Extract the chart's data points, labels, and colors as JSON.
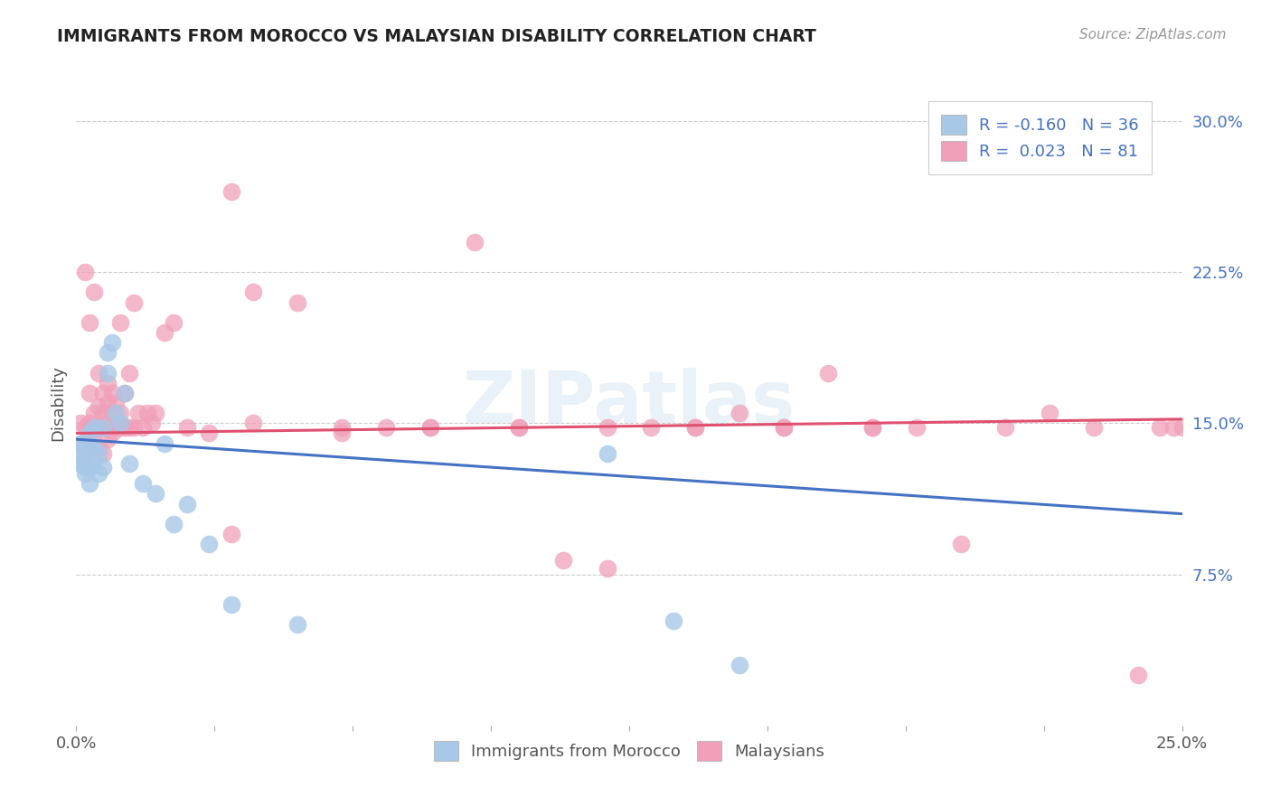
{
  "title": "IMMIGRANTS FROM MOROCCO VS MALAYSIAN DISABILITY CORRELATION CHART",
  "source": "Source: ZipAtlas.com",
  "ylabel": "Disability",
  "x_min": 0.0,
  "x_max": 0.25,
  "y_min": 0.0,
  "y_max": 0.32,
  "x_ticks": [
    0.0,
    0.03125,
    0.0625,
    0.09375,
    0.125,
    0.15625,
    0.1875,
    0.21875,
    0.25
  ],
  "x_tick_labels": [
    "0.0%",
    "",
    "",
    "",
    "",
    "",
    "",
    "",
    "25.0%"
  ],
  "y_ticks": [
    0.075,
    0.15,
    0.225,
    0.3
  ],
  "y_tick_labels": [
    "7.5%",
    "15.0%",
    "22.5%",
    "30.0%"
  ],
  "blue_color": "#a8c8e8",
  "pink_color": "#f0a0b8",
  "blue_line_color": "#4472c4",
  "pink_line_color": "#e05070",
  "legend_r_blue": "-0.160",
  "legend_n_blue": "36",
  "legend_r_pink": "0.023",
  "legend_n_pink": "81",
  "watermark": "ZIPatlas",
  "blue_scatter_x": [
    0.001,
    0.001,
    0.001,
    0.002,
    0.002,
    0.002,
    0.002,
    0.003,
    0.003,
    0.003,
    0.003,
    0.004,
    0.004,
    0.004,
    0.005,
    0.005,
    0.006,
    0.006,
    0.007,
    0.007,
    0.008,
    0.009,
    0.01,
    0.011,
    0.012,
    0.015,
    0.018,
    0.02,
    0.022,
    0.025,
    0.03,
    0.035,
    0.05,
    0.12,
    0.15,
    0.135
  ],
  "blue_scatter_y": [
    0.13,
    0.135,
    0.14,
    0.125,
    0.128,
    0.13,
    0.138,
    0.12,
    0.128,
    0.138,
    0.145,
    0.13,
    0.138,
    0.148,
    0.125,
    0.135,
    0.128,
    0.148,
    0.175,
    0.185,
    0.19,
    0.155,
    0.15,
    0.165,
    0.13,
    0.12,
    0.115,
    0.14,
    0.1,
    0.11,
    0.09,
    0.06,
    0.05,
    0.135,
    0.03,
    0.052
  ],
  "pink_scatter_x": [
    0.001,
    0.001,
    0.002,
    0.002,
    0.002,
    0.003,
    0.003,
    0.003,
    0.003,
    0.004,
    0.004,
    0.004,
    0.005,
    0.005,
    0.005,
    0.005,
    0.006,
    0.006,
    0.006,
    0.006,
    0.007,
    0.007,
    0.007,
    0.007,
    0.008,
    0.008,
    0.008,
    0.009,
    0.009,
    0.01,
    0.01,
    0.01,
    0.011,
    0.011,
    0.012,
    0.012,
    0.013,
    0.013,
    0.014,
    0.015,
    0.016,
    0.017,
    0.018,
    0.02,
    0.022,
    0.025,
    0.03,
    0.035,
    0.04,
    0.05,
    0.06,
    0.07,
    0.08,
    0.09,
    0.1,
    0.11,
    0.12,
    0.13,
    0.14,
    0.15,
    0.16,
    0.17,
    0.18,
    0.19,
    0.2,
    0.21,
    0.22,
    0.23,
    0.24,
    0.245,
    0.248,
    0.25,
    0.035,
    0.04,
    0.06,
    0.08,
    0.1,
    0.12,
    0.14,
    0.16,
    0.18
  ],
  "pink_scatter_y": [
    0.14,
    0.15,
    0.135,
    0.148,
    0.225,
    0.14,
    0.15,
    0.165,
    0.2,
    0.145,
    0.155,
    0.215,
    0.138,
    0.148,
    0.158,
    0.175,
    0.135,
    0.148,
    0.155,
    0.165,
    0.142,
    0.15,
    0.16,
    0.17,
    0.145,
    0.155,
    0.165,
    0.148,
    0.16,
    0.148,
    0.155,
    0.2,
    0.148,
    0.165,
    0.148,
    0.175,
    0.148,
    0.21,
    0.155,
    0.148,
    0.155,
    0.15,
    0.155,
    0.195,
    0.2,
    0.148,
    0.145,
    0.095,
    0.15,
    0.21,
    0.145,
    0.148,
    0.148,
    0.24,
    0.148,
    0.082,
    0.148,
    0.148,
    0.148,
    0.155,
    0.148,
    0.175,
    0.148,
    0.148,
    0.09,
    0.148,
    0.155,
    0.148,
    0.025,
    0.148,
    0.148,
    0.148,
    0.265,
    0.215,
    0.148,
    0.148,
    0.148,
    0.078,
    0.148,
    0.148,
    0.148
  ]
}
